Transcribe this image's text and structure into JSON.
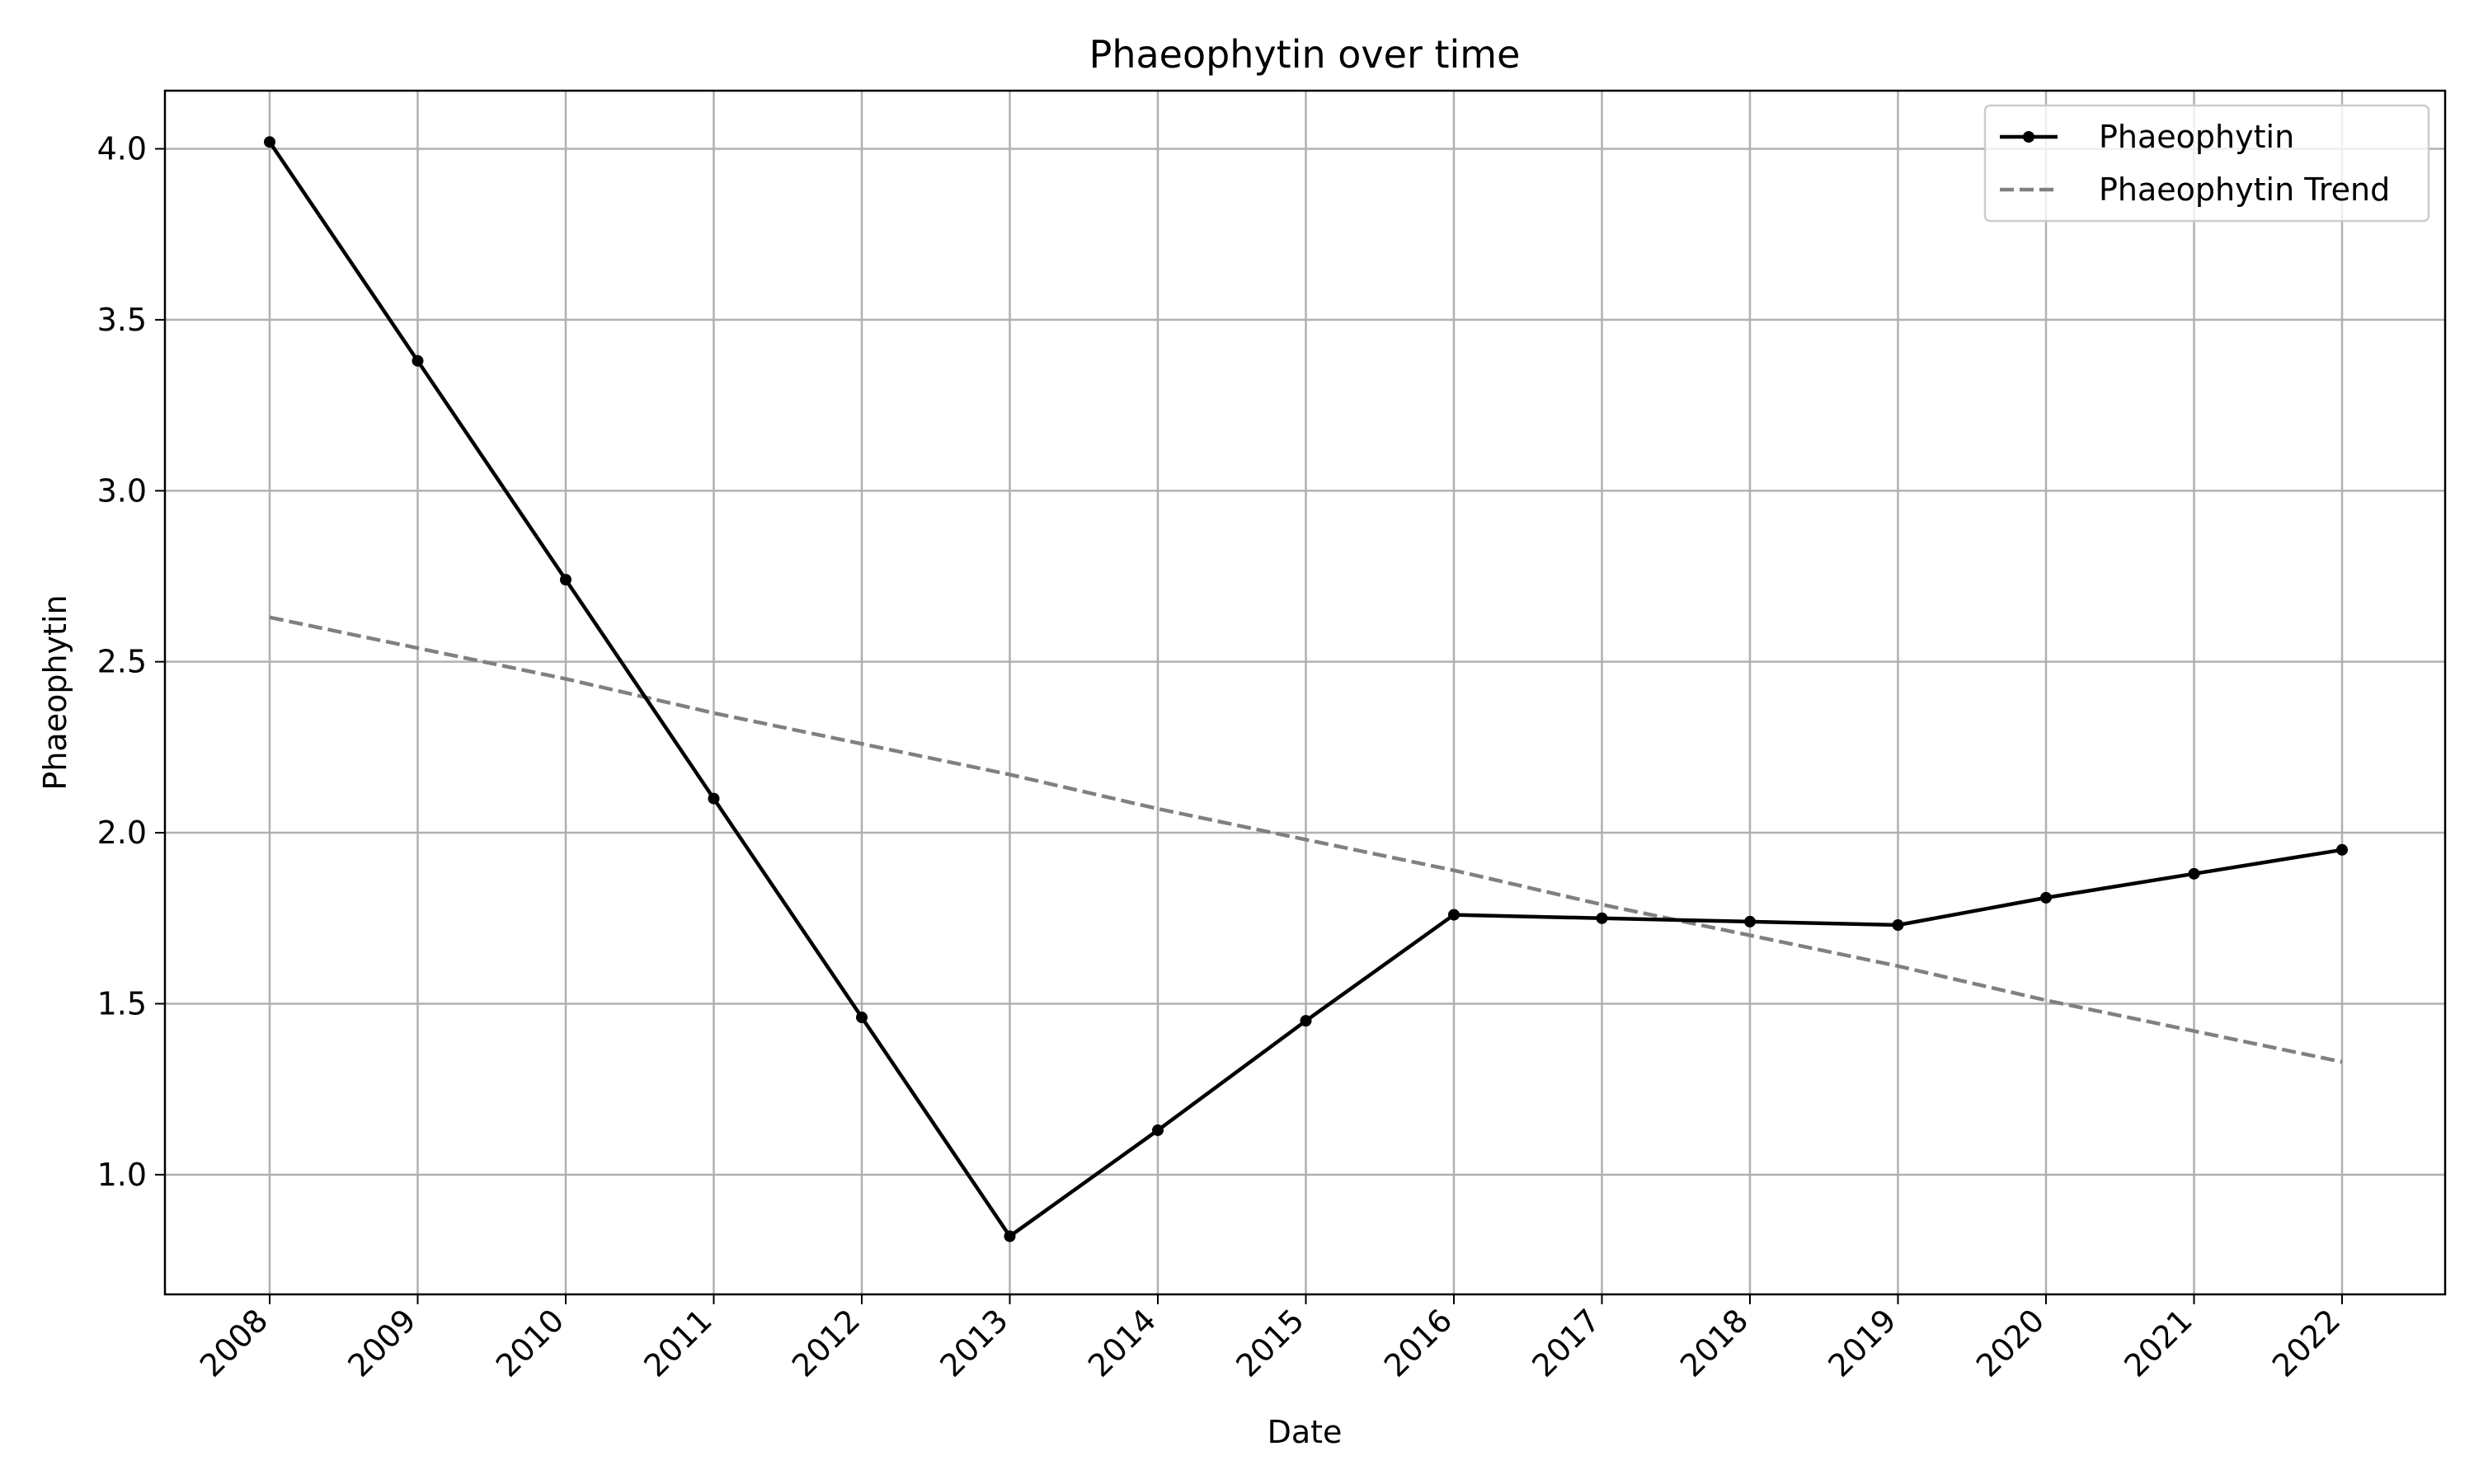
{
  "chart_data": {
    "type": "line",
    "title": "Phaeophytin over time",
    "xlabel": "Date",
    "ylabel": "Phaeophytin",
    "x": [
      "2008",
      "2009",
      "2010",
      "2011",
      "2012",
      "2013",
      "2014",
      "2015",
      "2016",
      "2017",
      "2018",
      "2019",
      "2020",
      "2021",
      "2022"
    ],
    "y_ticks": [
      "1.0",
      "1.5",
      "2.0",
      "2.5",
      "3.0",
      "3.5",
      "4.0"
    ],
    "ylim": [
      0.65,
      4.17
    ],
    "grid": true,
    "legend_position": "top-right",
    "series": [
      {
        "name": "Phaeophytin",
        "style": "solid-with-markers",
        "color": "#000000",
        "values": [
          4.02,
          3.38,
          2.74,
          2.1,
          1.46,
          0.82,
          1.13,
          1.45,
          1.76,
          1.75,
          1.74,
          1.73,
          1.81,
          1.88,
          1.95
        ]
      },
      {
        "name": "Phaeophytin Trend",
        "style": "dashed",
        "color": "#808080",
        "values": [
          2.63,
          2.54,
          2.45,
          2.35,
          2.26,
          2.17,
          2.07,
          1.98,
          1.89,
          1.79,
          1.7,
          1.61,
          1.51,
          1.42,
          1.33
        ]
      }
    ]
  }
}
